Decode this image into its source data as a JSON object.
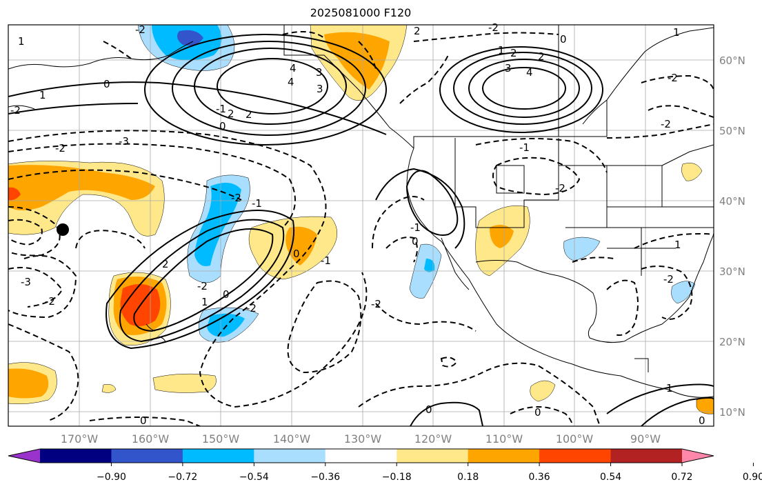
{
  "title": "2025081000 F120",
  "map": {
    "lat_labels": [
      "60°N",
      "50°N",
      "40°N",
      "30°N",
      "20°N",
      "10°N"
    ],
    "lon_labels": [
      "170°W",
      "160°W",
      "150°W",
      "140°W",
      "130°W",
      "120°W",
      "110°W",
      "100°W",
      "90°W"
    ],
    "contour_labels": [
      "0",
      "1",
      "2",
      "3",
      "4",
      "-1",
      "-2",
      "-3",
      "0",
      "2",
      "4",
      "3",
      "2",
      "1",
      "-2",
      "-2",
      "-1",
      "-2",
      "-3",
      "2",
      "1",
      "0",
      "-1",
      "-2",
      "0",
      "-2",
      "-1",
      "-2",
      "0",
      "-1",
      "-2",
      "1",
      "-2",
      "-2",
      "0",
      "0",
      "0",
      "2",
      "1",
      "-2",
      "0",
      "1",
      "-2",
      "-2",
      "3",
      "4",
      "2",
      "1",
      "0"
    ],
    "marker": "point"
  },
  "colorbar": {
    "ticks": [
      "−0.90",
      "−0.72",
      "−0.54",
      "−0.36",
      "−0.18",
      "0.18",
      "0.36",
      "0.54",
      "0.72",
      "0.90"
    ],
    "colors": [
      "#9933cc",
      "#000080",
      "#3355cc",
      "#00bbff",
      "#aadeff",
      "#ffffff",
      "#ffe88a",
      "#ffa500",
      "#ff4500",
      "#b22222",
      "#ff88aa"
    ]
  }
}
